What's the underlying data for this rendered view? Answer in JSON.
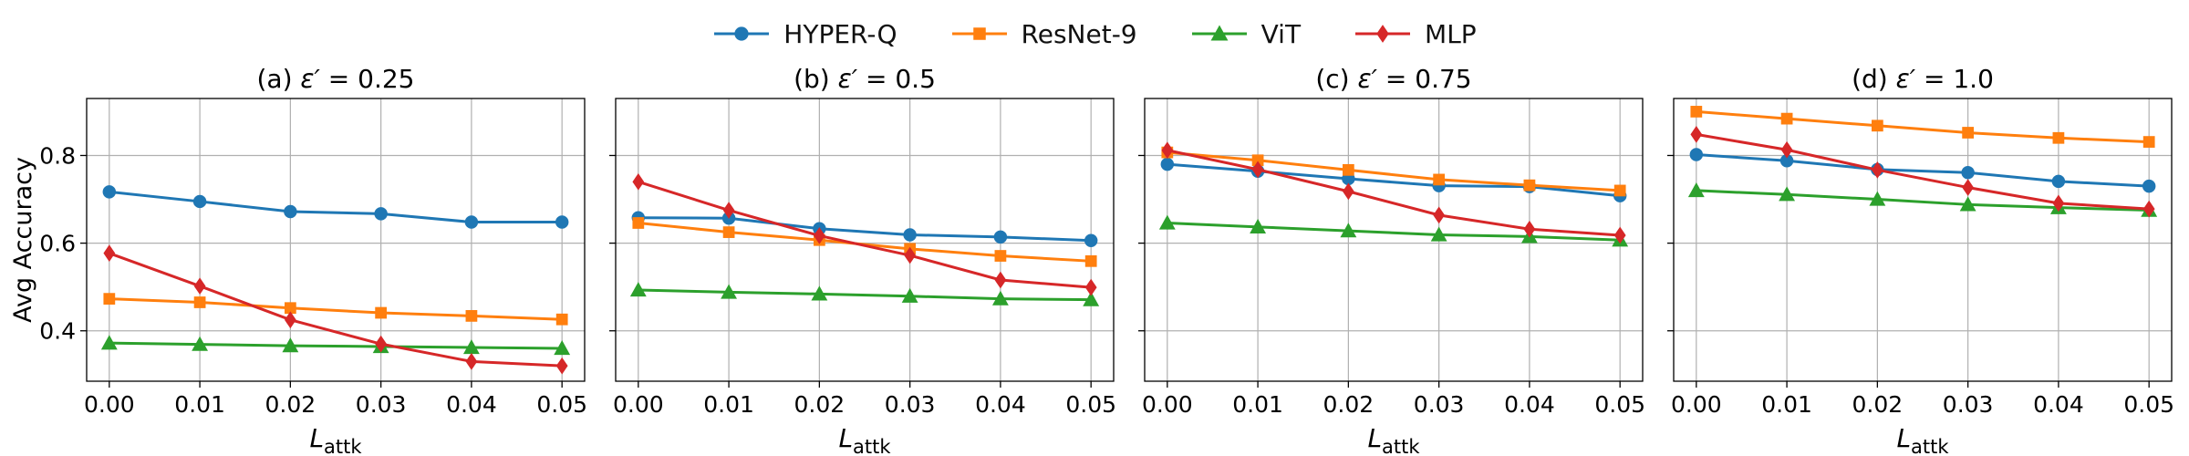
{
  "chart_data": {
    "type": "line",
    "shared": {
      "ylabel": "Avg Accuracy",
      "xlabel_main": "L",
      "xlabel_sub": "attk",
      "x": [
        0.0,
        0.01,
        0.02,
        0.03,
        0.04,
        0.05
      ],
      "xticklabels": [
        "0.00",
        "0.01",
        "0.02",
        "0.03",
        "0.04",
        "0.05"
      ],
      "xlim": [
        -0.0025,
        0.0525
      ],
      "ylim": [
        0.285,
        0.93
      ],
      "yticks": [
        0.4,
        0.6,
        0.8
      ],
      "yticklabels": [
        "0.4",
        "0.6",
        "0.8"
      ],
      "grid": true,
      "legend_position": "top-center"
    },
    "series_styles": [
      {
        "name": "HYPER-Q",
        "color": "#1f77b4",
        "marker": "circle"
      },
      {
        "name": "ResNet-9",
        "color": "#ff7f0e",
        "marker": "square"
      },
      {
        "name": "ViT",
        "color": "#2ca02c",
        "marker": "triangle"
      },
      {
        "name": "MLP",
        "color": "#d62728",
        "marker": "diamond"
      }
    ],
    "panels": [
      {
        "title_prefix": "(a) ",
        "title_var": "ε′",
        "title_suffix": " = 0.25",
        "series": [
          {
            "name": "HYPER-Q",
            "values": [
              0.717,
              0.695,
              0.672,
              0.667,
              0.648,
              0.648
            ]
          },
          {
            "name": "ResNet-9",
            "values": [
              0.473,
              0.465,
              0.452,
              0.441,
              0.434,
              0.426
            ]
          },
          {
            "name": "ViT",
            "values": [
              0.372,
              0.369,
              0.366,
              0.364,
              0.362,
              0.36
            ]
          },
          {
            "name": "MLP",
            "values": [
              0.577,
              0.502,
              0.425,
              0.37,
              0.33,
              0.32
            ]
          }
        ]
      },
      {
        "title_prefix": "(b) ",
        "title_var": "ε′",
        "title_suffix": " = 0.5",
        "series": [
          {
            "name": "HYPER-Q",
            "values": [
              0.658,
              0.657,
              0.633,
              0.619,
              0.614,
              0.606
            ]
          },
          {
            "name": "ResNet-9",
            "values": [
              0.646,
              0.625,
              0.607,
              0.587,
              0.571,
              0.559
            ]
          },
          {
            "name": "ViT",
            "values": [
              0.493,
              0.488,
              0.484,
              0.479,
              0.473,
              0.471
            ]
          },
          {
            "name": "MLP",
            "values": [
              0.74,
              0.675,
              0.617,
              0.572,
              0.516,
              0.499
            ]
          }
        ]
      },
      {
        "title_prefix": "(c) ",
        "title_var": "ε′",
        "title_suffix": " = 0.75",
        "series": [
          {
            "name": "HYPER-Q",
            "values": [
              0.78,
              0.764,
              0.747,
              0.731,
              0.729,
              0.708
            ]
          },
          {
            "name": "ResNet-9",
            "values": [
              0.807,
              0.789,
              0.767,
              0.745,
              0.732,
              0.72
            ]
          },
          {
            "name": "ViT",
            "values": [
              0.646,
              0.637,
              0.628,
              0.619,
              0.615,
              0.607
            ]
          },
          {
            "name": "MLP",
            "values": [
              0.812,
              0.768,
              0.718,
              0.664,
              0.632,
              0.618
            ]
          }
        ]
      },
      {
        "title_prefix": "(d) ",
        "title_var": "ε′",
        "title_suffix": " = 1.0",
        "series": [
          {
            "name": "HYPER-Q",
            "values": [
              0.802,
              0.788,
              0.768,
              0.761,
              0.741,
              0.73
            ]
          },
          {
            "name": "ResNet-9",
            "values": [
              0.9,
              0.884,
              0.868,
              0.852,
              0.84,
              0.831
            ]
          },
          {
            "name": "ViT",
            "values": [
              0.72,
              0.711,
              0.7,
              0.688,
              0.681,
              0.675
            ]
          },
          {
            "name": "MLP",
            "values": [
              0.848,
              0.813,
              0.767,
              0.727,
              0.691,
              0.678
            ]
          }
        ]
      }
    ]
  }
}
